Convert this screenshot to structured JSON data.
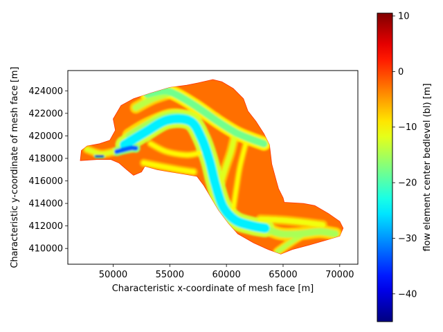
{
  "chart_data": {
    "type": "heatmap",
    "title": "",
    "xlabel": "Characteristic x-coordinate of mesh face [m]",
    "ylabel": "Characteristic y-coordinate of mesh face [m]",
    "xlim": [
      46000,
      71600
    ],
    "ylim": [
      408600,
      425800
    ],
    "x_ticks": [
      50000,
      55000,
      60000,
      65000,
      70000
    ],
    "y_ticks": [
      410000,
      412000,
      414000,
      416000,
      418000,
      420000,
      422000,
      424000
    ],
    "colorbar": {
      "label": "flow element center bedlevel (bl) [m]",
      "colormap": "jet",
      "min": -45,
      "max": 10.5,
      "ticks": [
        10,
        0,
        -10,
        -20,
        -30,
        -40
      ]
    },
    "domain_outline": [
      [
        47100,
        417800
      ],
      [
        47200,
        418700
      ],
      [
        47700,
        419100
      ],
      [
        48800,
        419300
      ],
      [
        49700,
        419600
      ],
      [
        50200,
        420500
      ],
      [
        50000,
        421500
      ],
      [
        50700,
        422700
      ],
      [
        51800,
        423300
      ],
      [
        53300,
        423800
      ],
      [
        55000,
        424300
      ],
      [
        56500,
        424500
      ],
      [
        57500,
        424700
      ],
      [
        58800,
        425000
      ],
      [
        59600,
        424800
      ],
      [
        60600,
        424200
      ],
      [
        61500,
        423300
      ],
      [
        61900,
        422200
      ],
      [
        62600,
        421300
      ],
      [
        63300,
        420200
      ],
      [
        63800,
        419200
      ],
      [
        64000,
        417500
      ],
      [
        64400,
        416000
      ],
      [
        64600,
        415300
      ],
      [
        65000,
        414500
      ],
      [
        65100,
        414100
      ],
      [
        66800,
        414000
      ],
      [
        67800,
        413800
      ],
      [
        69000,
        413100
      ],
      [
        70000,
        412400
      ],
      [
        70300,
        411800
      ],
      [
        70000,
        411100
      ],
      [
        69000,
        410800
      ],
      [
        67300,
        410300
      ],
      [
        65800,
        409900
      ],
      [
        64800,
        409500
      ],
      [
        63700,
        409900
      ],
      [
        62400,
        410500
      ],
      [
        61000,
        411300
      ],
      [
        60200,
        412200
      ],
      [
        59300,
        413400
      ],
      [
        58700,
        414400
      ],
      [
        58000,
        415600
      ],
      [
        57400,
        416400
      ],
      [
        56300,
        416600
      ],
      [
        55000,
        416800
      ],
      [
        53900,
        417000
      ],
      [
        52800,
        417300
      ],
      [
        52500,
        416800
      ],
      [
        51800,
        416500
      ],
      [
        51200,
        417000
      ],
      [
        50500,
        417600
      ],
      [
        49800,
        417900
      ],
      [
        48600,
        417900
      ]
    ],
    "channels": [
      {
        "level": -25,
        "width_m": 850,
        "points": [
          [
            51000,
            419200
          ],
          [
            52800,
            420300
          ],
          [
            54800,
            421400
          ],
          [
            56800,
            421300
          ],
          [
            57800,
            419800
          ],
          [
            58500,
            417800
          ],
          [
            59000,
            415800
          ],
          [
            59700,
            413700
          ],
          [
            60800,
            412500
          ],
          [
            62300,
            412000
          ],
          [
            63400,
            411800
          ]
        ]
      },
      {
        "level": -15,
        "width_m": 750,
        "points": [
          [
            51500,
            420000
          ],
          [
            53000,
            420900
          ],
          [
            55000,
            421700
          ],
          [
            56500,
            421600
          ]
        ]
      },
      {
        "level": -18,
        "width_m": 650,
        "points": [
          [
            53000,
            423700
          ],
          [
            54500,
            424000
          ],
          [
            55500,
            423700
          ],
          [
            57200,
            422700
          ],
          [
            59200,
            421300
          ],
          [
            60800,
            420300
          ],
          [
            62200,
            419700
          ],
          [
            63300,
            419300
          ]
        ]
      },
      {
        "level": -14,
        "width_m": 550,
        "points": [
          [
            52000,
            422500
          ],
          [
            53500,
            423300
          ],
          [
            55000,
            423800
          ]
        ]
      },
      {
        "level": -12,
        "width_m": 450,
        "points": [
          [
            60800,
            420300
          ],
          [
            60400,
            418600
          ],
          [
            59800,
            416800
          ],
          [
            59300,
            414800
          ],
          [
            59600,
            413200
          ]
        ]
      },
      {
        "level": -10,
        "width_m": 320,
        "points": [
          [
            61700,
            419300
          ],
          [
            61200,
            417300
          ],
          [
            60900,
            415500
          ],
          [
            60600,
            413500
          ]
        ]
      },
      {
        "level": -15,
        "width_m": 600,
        "points": [
          [
            63400,
            411800
          ],
          [
            64800,
            411300
          ],
          [
            66500,
            411300
          ],
          [
            68200,
            411500
          ],
          [
            69600,
            411300
          ]
        ]
      },
      {
        "level": -11,
        "width_m": 450,
        "points": [
          [
            63000,
            412600
          ],
          [
            65000,
            412500
          ],
          [
            67000,
            412300
          ],
          [
            68500,
            412100
          ]
        ]
      },
      {
        "level": -14,
        "width_m": 420,
        "points": [
          [
            64500,
            409700
          ],
          [
            65600,
            410500
          ],
          [
            66700,
            411200
          ]
        ]
      },
      {
        "level": -10,
        "width_m": 400,
        "points": [
          [
            52700,
            417600
          ],
          [
            54200,
            417300
          ],
          [
            55800,
            417000
          ],
          [
            57100,
            416800
          ]
        ]
      },
      {
        "level": -10,
        "width_m": 350,
        "points": [
          [
            53300,
            419300
          ],
          [
            54700,
            418600
          ],
          [
            56500,
            418300
          ],
          [
            57700,
            418500
          ]
        ]
      },
      {
        "level": -12,
        "width_m": 400,
        "points": [
          [
            47700,
            418800
          ],
          [
            49000,
            418400
          ],
          [
            50500,
            418700
          ],
          [
            51800,
            418900
          ]
        ]
      },
      {
        "level": -33,
        "width_m": 420,
        "points": [
          [
            50300,
            418600
          ],
          [
            51500,
            418900
          ],
          [
            52000,
            418900
          ]
        ]
      },
      {
        "level": -42,
        "width_m": 200,
        "points": [
          [
            48500,
            418200
          ],
          [
            49100,
            418200
          ]
        ]
      },
      {
        "level": -9,
        "width_m": 260,
        "points": [
          [
            56800,
            423000
          ],
          [
            58000,
            422300
          ],
          [
            59200,
            421800
          ]
        ]
      }
    ]
  }
}
